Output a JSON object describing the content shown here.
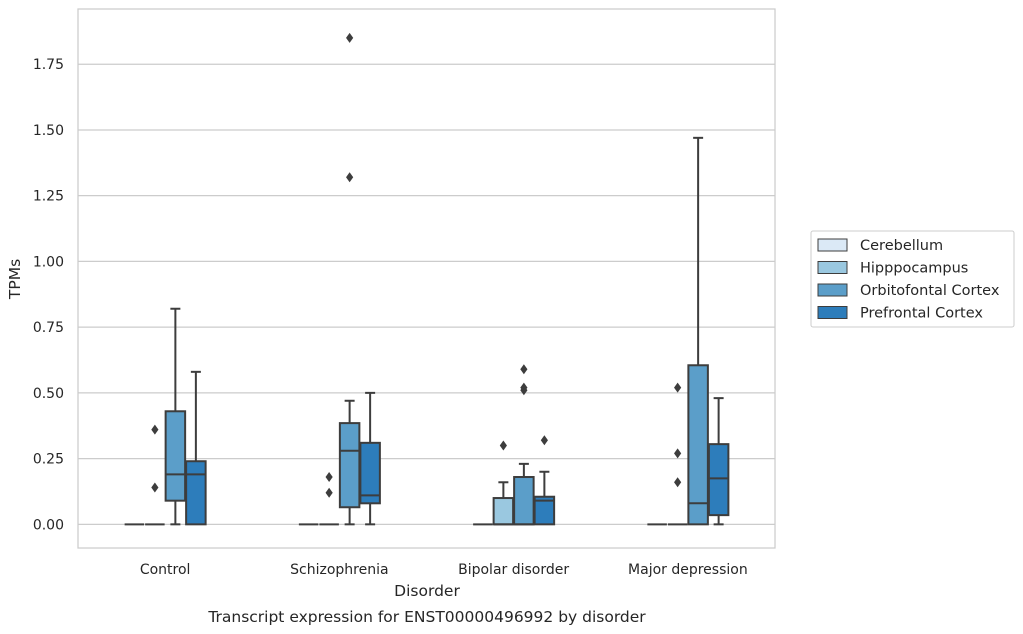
{
  "chart_data": {
    "type": "box",
    "title": "",
    "caption": "Transcript expression for ENST00000496992 by disorder",
    "xlabel": "Disorder",
    "ylabel": "TPMs",
    "ylim": [
      -0.09,
      1.96
    ],
    "yticks": [
      0.0,
      0.25,
      0.5,
      0.75,
      1.0,
      1.25,
      1.5,
      1.75
    ],
    "ytick_labels": [
      "0.00",
      "0.25",
      "0.50",
      "0.75",
      "1.00",
      "1.25",
      "1.50",
      "1.75"
    ],
    "grid": true,
    "legend_position": "right",
    "categories": [
      "Control",
      "Schizophrenia",
      "Bipolar disorder",
      "Major depression"
    ],
    "series": [
      {
        "name": "Cerebellum",
        "color": "#dbe9f6",
        "boxes": [
          {
            "whislo": 0,
            "q1": 0,
            "med": 0,
            "q3": 0,
            "whishi": 0,
            "fliers": []
          },
          {
            "whislo": 0,
            "q1": 0,
            "med": 0,
            "q3": 0,
            "whishi": 0,
            "fliers": []
          },
          {
            "whislo": 0,
            "q1": 0,
            "med": 0,
            "q3": 0,
            "whishi": 0,
            "fliers": []
          },
          {
            "whislo": 0,
            "q1": 0,
            "med": 0,
            "q3": 0,
            "whishi": 0,
            "fliers": []
          }
        ]
      },
      {
        "name": "Hipppocampus",
        "color": "#9ac8e0",
        "boxes": [
          {
            "whislo": 0,
            "q1": 0,
            "med": 0,
            "q3": 0,
            "whishi": 0,
            "fliers": [
              0.14,
              0.36
            ]
          },
          {
            "whislo": 0,
            "q1": 0,
            "med": 0,
            "q3": 0,
            "whishi": 0,
            "fliers": [
              0.12,
              0.18
            ]
          },
          {
            "whislo": 0,
            "q1": 0,
            "med": 0,
            "q3": 0.1,
            "whishi": 0.16,
            "fliers": [
              0.3
            ]
          },
          {
            "whislo": 0,
            "q1": 0,
            "med": 0,
            "q3": 0,
            "whishi": 0,
            "fliers": [
              0.16,
              0.27,
              0.52
            ]
          }
        ]
      },
      {
        "name": "Orbitofontal Cortex",
        "color": "#5b9ec9",
        "boxes": [
          {
            "whislo": 0,
            "q1": 0.09,
            "med": 0.19,
            "q3": 0.43,
            "whishi": 0.82,
            "fliers": []
          },
          {
            "whislo": 0,
            "q1": 0.065,
            "med": 0.28,
            "q3": 0.385,
            "whishi": 0.47,
            "fliers": [
              1.32,
              1.85
            ]
          },
          {
            "whislo": 0,
            "q1": 0,
            "med": 0,
            "q3": 0.18,
            "whishi": 0.23,
            "fliers": [
              0.51,
              0.52,
              0.59
            ]
          },
          {
            "whislo": 0,
            "q1": 0,
            "med": 0.08,
            "q3": 0.605,
            "whishi": 1.47,
            "fliers": []
          }
        ]
      },
      {
        "name": "Prefrontal Cortex",
        "color": "#2d7dbb",
        "boxes": [
          {
            "whislo": 0,
            "q1": 0,
            "med": 0.19,
            "q3": 0.24,
            "whishi": 0.58,
            "fliers": []
          },
          {
            "whislo": 0,
            "q1": 0.08,
            "med": 0.11,
            "q3": 0.31,
            "whishi": 0.5,
            "fliers": []
          },
          {
            "whislo": 0,
            "q1": 0,
            "med": 0.09,
            "q3": 0.105,
            "whishi": 0.2,
            "fliers": [
              0.32
            ]
          },
          {
            "whislo": 0,
            "q1": 0.035,
            "med": 0.175,
            "q3": 0.305,
            "whishi": 0.48,
            "fliers": []
          }
        ]
      }
    ]
  }
}
